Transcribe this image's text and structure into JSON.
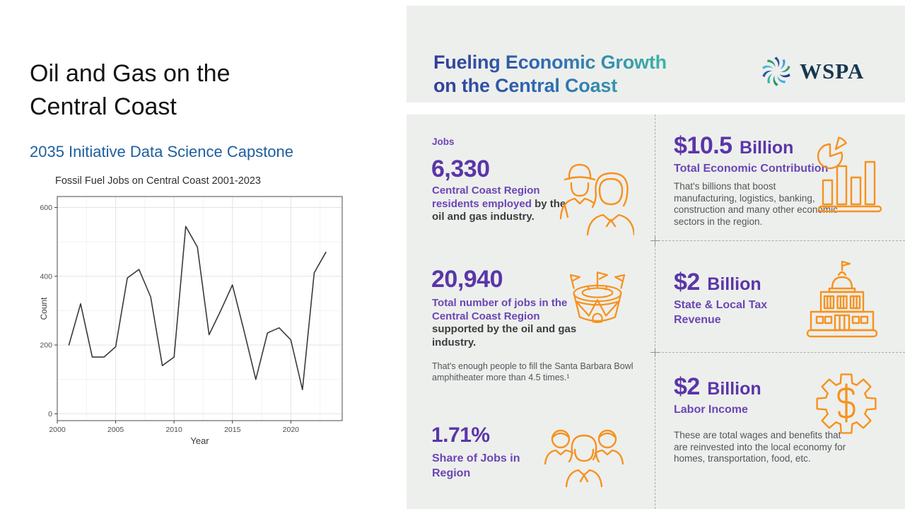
{
  "slide": {
    "title": "Oil and Gas on the\nCentral Coast",
    "subtitle": "2035 Initiative Data Science Capstone"
  },
  "chart_data": {
    "type": "line",
    "title": "Fossil Fuel Jobs on Central Coast 2001-2023",
    "xlabel": "Year",
    "ylabel": "Count",
    "x": [
      2001,
      2002,
      2003,
      2004,
      2005,
      2006,
      2007,
      2008,
      2009,
      2010,
      2011,
      2012,
      2013,
      2014,
      2015,
      2016,
      2017,
      2018,
      2019,
      2020,
      2021,
      2022,
      2023
    ],
    "y": [
      200,
      320,
      165,
      165,
      195,
      395,
      420,
      340,
      140,
      165,
      545,
      485,
      230,
      300,
      375,
      240,
      100,
      235,
      250,
      215,
      70,
      410,
      470
    ],
    "xlim": [
      2000,
      2024.4
    ],
    "ylim": [
      -20,
      632
    ],
    "x_ticks": [
      2000,
      2005,
      2010,
      2015,
      2020
    ],
    "x_minor": [
      2002.5,
      2007.5,
      2012.5,
      2017.5,
      2022.5
    ],
    "y_ticks": [
      0,
      200,
      400,
      600
    ],
    "y_minor": [
      100,
      300,
      500
    ],
    "grid": true,
    "legend": false,
    "line_color": "#3a3a3a"
  },
  "infographic": {
    "header": {
      "title": "Fueling Economic Growth\non the Central Coast",
      "logo_text": "WSPA"
    },
    "jobs": {
      "label": "Jobs",
      "value": "6,330",
      "desc_highlight": "Central Coast Region residents employed ",
      "desc_rest": "by the oil and gas industry."
    },
    "total_jobs": {
      "value": "20,940",
      "desc_highlight": "Total number of jobs in the Central Coast Region ",
      "desc_rest": "supported by the oil and gas industry.",
      "note": "That's enough people to fill the Santa Barbara Bowl amphitheater more than 4.5 times.¹"
    },
    "job_share": {
      "value": "1.71%",
      "label": "Share of Jobs in Region"
    },
    "economic_contribution": {
      "value": "$10.5",
      "unit": "Billion",
      "label": "Total Economic Contribution",
      "desc": "That's billions that boost manufacturing, logistics, banking, construction and many other economic sectors in the region."
    },
    "tax_revenue": {
      "value": "$2",
      "unit": "Billion",
      "label": "State & Local Tax Revenue"
    },
    "labor_income": {
      "value": "$2",
      "unit": "Billion",
      "label": "Labor Income",
      "desc": "These are total wages and benefits that are reinvested into the local economy for homes, transportation, food, etc."
    }
  },
  "colors": {
    "accent_purple": "#5a36a8",
    "purple_label": "#6b46b4",
    "accent_orange": "#f6921e",
    "header_gradient_start": "#333d99",
    "header_gradient_mid": "#2f6fb3",
    "header_gradient_end": "#3cb4a5",
    "subtitle_blue": "#1e5f9e",
    "logo_navy": "#16374e",
    "panel_bg": "#edefed",
    "text_dark": "#3d3d40",
    "text_gray": "#54555a",
    "divider_gray": "#aaadaa",
    "chart_line": "#3a3a3a"
  }
}
